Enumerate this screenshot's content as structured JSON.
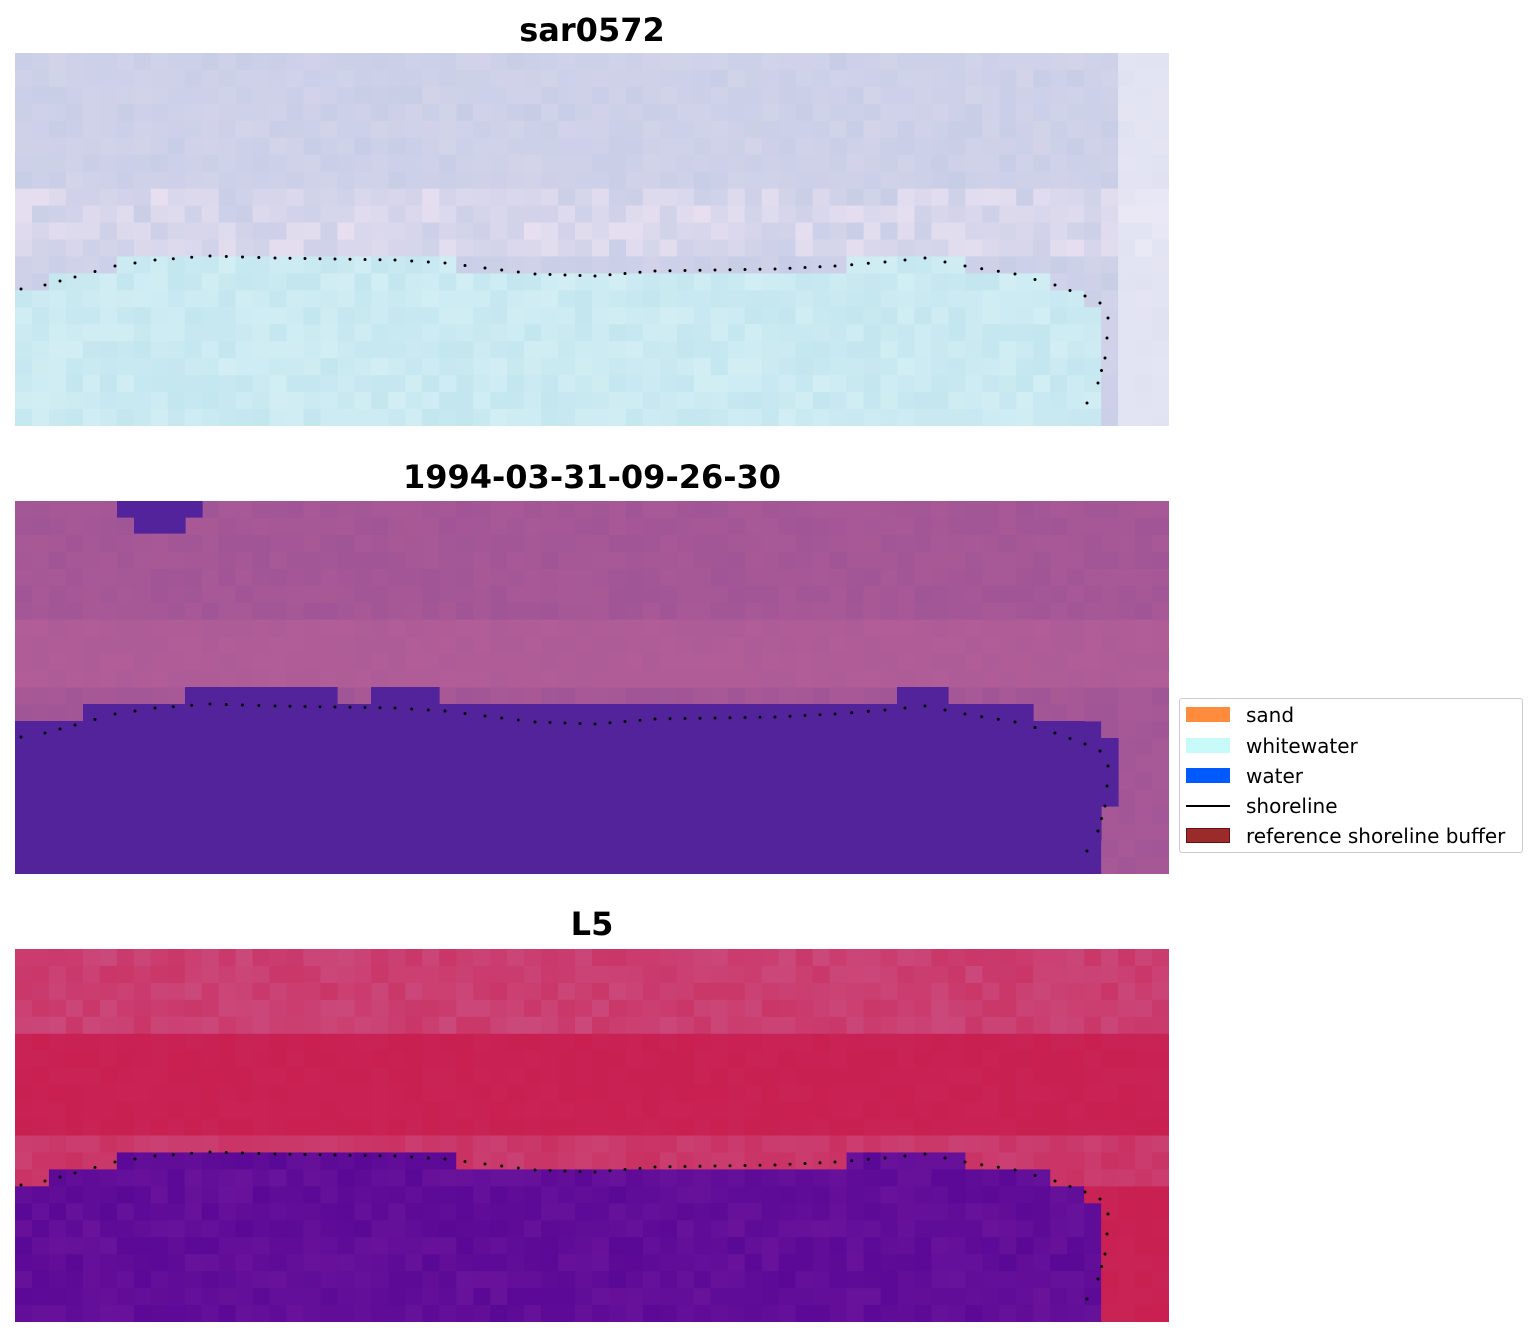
{
  "panels": [
    {
      "title": "sar0572"
    },
    {
      "title": "1994-03-31-09-26-30"
    },
    {
      "title": "L5"
    }
  ],
  "legend": {
    "items": [
      {
        "label": "sand",
        "color": "#ff8c3c"
      },
      {
        "label": "whitewater",
        "color": "#c8fafa"
      },
      {
        "label": "water",
        "color": "#005aff"
      },
      {
        "label": "shoreline",
        "color": "#000000"
      },
      {
        "label": "reference shoreline buffer",
        "color": "#9b2a2a"
      }
    ]
  },
  "colors": {
    "rgb_tint": "#c7cde6",
    "rgb_water": "#c3e6ef",
    "class_background": "#a05596",
    "class_water": "#52239a",
    "index_land": "#c91a4c",
    "index_water": "#5a0896"
  }
}
